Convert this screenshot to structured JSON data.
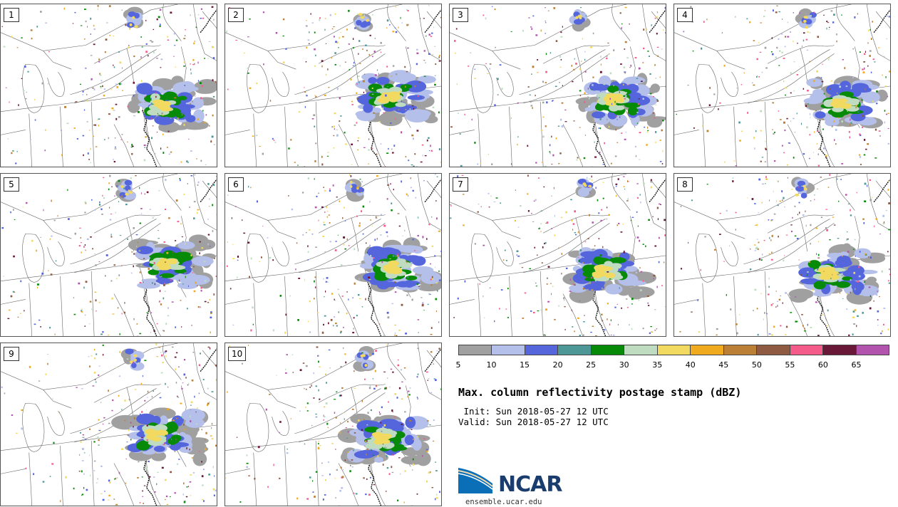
{
  "panels": [
    {
      "label": "1"
    },
    {
      "label": "2"
    },
    {
      "label": "3"
    },
    {
      "label": "4"
    },
    {
      "label": "5"
    },
    {
      "label": "6"
    },
    {
      "label": "7"
    },
    {
      "label": "8"
    },
    {
      "label": "9"
    },
    {
      "label": "10"
    }
  ],
  "colorbar": {
    "colors": [
      "#a0a0a0",
      "#b4bfea",
      "#5566dd",
      "#4e9797",
      "#078a07",
      "#bfdcc0",
      "#f2da60",
      "#f0aa1e",
      "#bb7f35",
      "#8f5a42",
      "#f55b8a",
      "#6a1838",
      "#b254ae"
    ],
    "ticks": [
      "5",
      "10",
      "15",
      "20",
      "25",
      "30",
      "35",
      "40",
      "45",
      "50",
      "55",
      "60",
      "65"
    ]
  },
  "title": "Max. column reflectivity postage stamp (dBZ)",
  "init": " Init: Sun 2018-05-27 12 UTC",
  "valid": "Valid: Sun 2018-05-27 12 UTC",
  "logo": {
    "text": "NCAR",
    "url": "ensemble.ucar.edu"
  }
}
